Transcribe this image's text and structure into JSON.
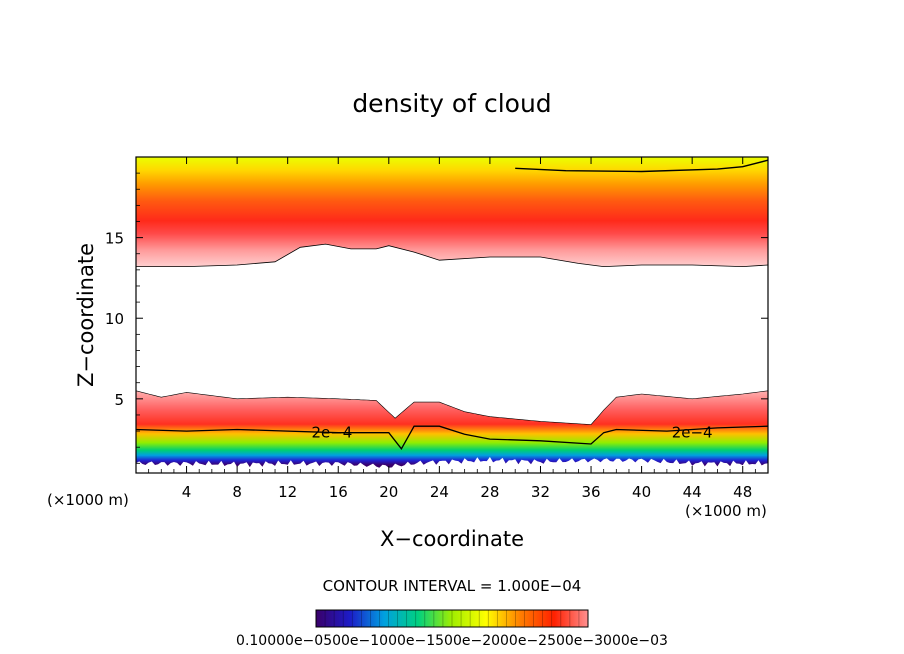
{
  "chart_data": {
    "type": "heatmap",
    "title": "density of cloud",
    "xlabel": "X−coordinate",
    "ylabel": "Z−coordinate",
    "x_unit_left": "(×1000 m)",
    "x_unit_right": "(×1000 m)",
    "xlim": [
      0,
      50
    ],
    "ylim": [
      0.4,
      20
    ],
    "x_ticks": [
      4,
      8,
      12,
      16,
      20,
      24,
      28,
      32,
      36,
      40,
      44,
      48
    ],
    "y_ticks": [
      5,
      10,
      15
    ],
    "contour_interval_label": "CONTOUR INTERVAL = 1.000E−04",
    "contour_labels": [
      {
        "text": "2e−4",
        "x": 15.5,
        "z": 2.9
      },
      {
        "text": "2e−4",
        "x": 44.0,
        "z": 2.9
      }
    ],
    "colorbar": {
      "labels_text": "0.10000e−0500e−1000e−1500e−2000e−2500e−3000e−03",
      "min": 1e-05,
      "max": 0.0003,
      "colors": [
        "#3a006a",
        "#1c1cc8",
        "#00a0e0",
        "#00d080",
        "#a0ee00",
        "#ffff00",
        "#ff8000",
        "#ff2000",
        "#ff9090"
      ]
    },
    "layers": {
      "upper_cloud": {
        "bottom_z": [
          [
            0,
            13.2
          ],
          [
            4,
            13.2
          ],
          [
            8,
            13.3
          ],
          [
            11,
            13.5
          ],
          [
            13,
            14.4
          ],
          [
            15,
            14.6
          ],
          [
            17,
            14.3
          ],
          [
            19,
            14.3
          ],
          [
            20,
            14.5
          ],
          [
            22,
            14.1
          ],
          [
            24,
            13.6
          ],
          [
            28,
            13.8
          ],
          [
            32,
            13.8
          ],
          [
            35,
            13.4
          ],
          [
            37,
            13.2
          ],
          [
            40,
            13.3
          ],
          [
            44,
            13.3
          ],
          [
            48,
            13.2
          ],
          [
            50,
            13.3
          ]
        ],
        "peak_z": [
          [
            0,
            15.5
          ],
          [
            6,
            15.8
          ],
          [
            10.5,
            16.4
          ],
          [
            12,
            16.7
          ],
          [
            16,
            16.2
          ],
          [
            20,
            15.8
          ],
          [
            24,
            15.8
          ],
          [
            30,
            15.7
          ],
          [
            36,
            15.5
          ],
          [
            42,
            15.3
          ],
          [
            50,
            15.3
          ]
        ],
        "top_contour_z": [
          [
            30,
            19.3
          ],
          [
            34,
            19.15
          ],
          [
            40,
            19.1
          ],
          [
            46,
            19.25
          ],
          [
            48,
            19.4
          ],
          [
            50,
            19.8
          ]
        ]
      },
      "lower_cloud": {
        "top_z": [
          [
            0,
            5.5
          ],
          [
            2,
            5.1
          ],
          [
            4,
            5.4
          ],
          [
            8,
            5.0
          ],
          [
            12,
            5.1
          ],
          [
            16,
            5.0
          ],
          [
            19,
            4.9
          ],
          [
            20.5,
            3.8
          ],
          [
            22,
            4.8
          ],
          [
            24,
            4.8
          ],
          [
            26,
            4.2
          ],
          [
            28,
            3.9
          ],
          [
            32,
            3.6
          ],
          [
            36,
            3.4
          ],
          [
            37,
            4.3
          ],
          [
            38,
            5.1
          ],
          [
            40,
            5.3
          ],
          [
            44,
            5.0
          ],
          [
            48,
            5.3
          ],
          [
            50,
            5.5
          ]
        ],
        "contour_2e4_z": [
          [
            0,
            3.1
          ],
          [
            4,
            3.0
          ],
          [
            8,
            3.1
          ],
          [
            12,
            3.0
          ],
          [
            16,
            2.9
          ],
          [
            20,
            2.9
          ],
          [
            21,
            1.9
          ],
          [
            22,
            3.3
          ],
          [
            24,
            3.3
          ],
          [
            26,
            2.8
          ],
          [
            28,
            2.5
          ],
          [
            32,
            2.4
          ],
          [
            36,
            2.2
          ],
          [
            37,
            2.9
          ],
          [
            38,
            3.1
          ],
          [
            42,
            3.0
          ],
          [
            46,
            3.2
          ],
          [
            50,
            3.3
          ]
        ],
        "bottom_z": [
          [
            0,
            1.0
          ],
          [
            4,
            1.0
          ],
          [
            8,
            0.95
          ],
          [
            12,
            1.0
          ],
          [
            16,
            1.0
          ],
          [
            20,
            0.8
          ],
          [
            22,
            1.0
          ],
          [
            24,
            1.1
          ],
          [
            28,
            1.2
          ],
          [
            32,
            1.1
          ],
          [
            36,
            1.2
          ],
          [
            40,
            1.2
          ],
          [
            44,
            1.0
          ],
          [
            48,
            1.0
          ],
          [
            50,
            1.0
          ]
        ]
      }
    }
  }
}
